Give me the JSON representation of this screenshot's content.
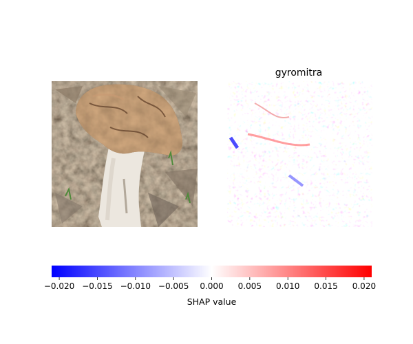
{
  "chart_data": {
    "type": "heatmap",
    "description_panels": [
      {
        "kind": "input-image",
        "title": "",
        "subject": "mushroom-photo"
      },
      {
        "kind": "shap-map",
        "title": "gyromitra",
        "colormap": "bwr"
      }
    ],
    "colorbar": {
      "label": "SHAP value",
      "min": -0.021,
      "max": 0.021,
      "ticks": [
        -0.02,
        -0.015,
        -0.01,
        -0.005,
        0.0,
        0.005,
        0.01,
        0.015,
        0.02
      ],
      "tick_labels": [
        "−0.020",
        "−0.015",
        "−0.010",
        "−0.005",
        "0.000",
        "0.005",
        "0.010",
        "0.015",
        "0.020"
      ],
      "orientation": "horizontal",
      "colors": {
        "low": "#0000ff",
        "mid": "#ffffff",
        "high": "#ff0000"
      }
    }
  }
}
